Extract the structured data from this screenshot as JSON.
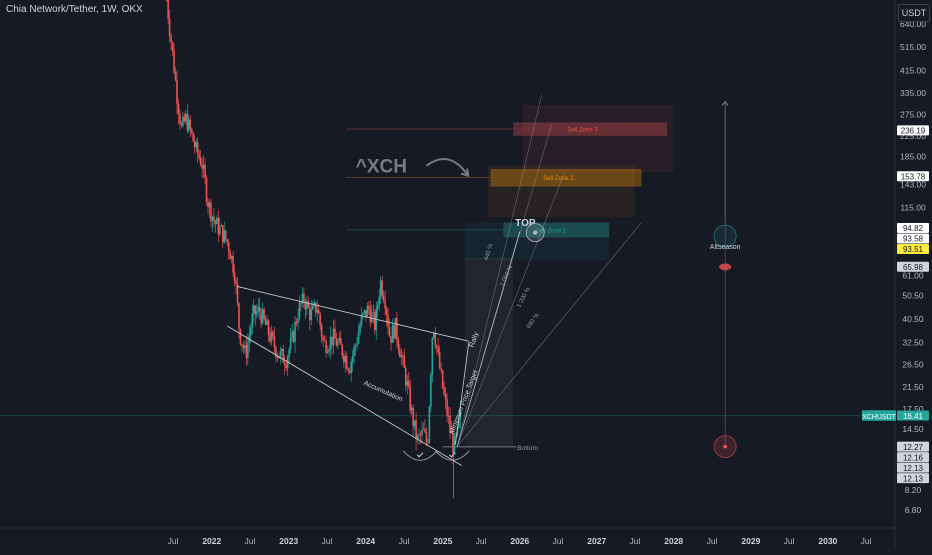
{
  "chart_data": {
    "type": "candlestick",
    "title": "Chia Network/Tether, 1W, OKX",
    "currency": "USDT",
    "y_scale": "log",
    "ylim": [
      5.5,
      800
    ],
    "y_ticks": [
      6.8,
      8.2,
      10.0,
      12.5,
      14.5,
      17.5,
      21.5,
      26.5,
      32.5,
      40.5,
      50.5,
      61.0,
      79.0,
      94.82,
      115.0,
      143.0,
      185.0,
      225.0,
      275.0,
      335.0,
      415.0,
      515.0,
      640.0
    ],
    "y_tick_labels": [
      "6.80",
      "8.20",
      "10.00",
      "12.50",
      "14.50",
      "17.50",
      "21.50",
      "26.50",
      "32.50",
      "40.50",
      "50.50",
      "61.00",
      "79.00",
      "94.82",
      "115.00",
      "143.00",
      "185.00",
      "225.00",
      "275.00",
      "335.00",
      "415.00",
      "515.00",
      "640.00"
    ],
    "x_ticks": [
      "2021-07",
      "2022-01",
      "2022-07",
      "2023-01",
      "2023-07",
      "2024-01",
      "2024-07",
      "2025-01",
      "2025-07",
      "2026-01",
      "2026-07",
      "2027-01",
      "2027-07",
      "2028-01",
      "2028-07",
      "2029-01",
      "2029-07",
      "2030-01",
      "2030-07"
    ],
    "x_tick_labels": [
      "Jul",
      "2022",
      "Jul",
      "2023",
      "Jul",
      "2024",
      "Jul",
      "2025",
      "Jul",
      "2026",
      "Jul",
      "2027",
      "Jul",
      "2028",
      "Jul",
      "2029",
      "Jul",
      "2030",
      "Jul"
    ],
    "price_path": [
      {
        "date": "2021-06-01",
        "price": 800
      },
      {
        "date": "2021-06-15",
        "price": 620
      },
      {
        "date": "2021-07-01",
        "price": 470
      },
      {
        "date": "2021-07-20",
        "price": 330
      },
      {
        "date": "2021-08-10",
        "price": 240
      },
      {
        "date": "2021-09-01",
        "price": 265
      },
      {
        "date": "2021-09-25",
        "price": 230
      },
      {
        "date": "2021-10-20",
        "price": 195
      },
      {
        "date": "2021-11-15",
        "price": 175
      },
      {
        "date": "2021-12-15",
        "price": 120
      },
      {
        "date": "2022-01-15",
        "price": 100
      },
      {
        "date": "2022-02-15",
        "price": 92
      },
      {
        "date": "2022-03-20",
        "price": 82
      },
      {
        "date": "2022-04-20",
        "price": 63
      },
      {
        "date": "2022-05-12",
        "price": 36
      },
      {
        "date": "2022-06-10",
        "price": 29
      },
      {
        "date": "2022-07-15",
        "price": 42
      },
      {
        "date": "2022-08-15",
        "price": 44
      },
      {
        "date": "2022-10-01",
        "price": 35
      },
      {
        "date": "2022-11-15",
        "price": 29
      },
      {
        "date": "2022-12-20",
        "price": 28
      },
      {
        "date": "2023-01-20",
        "price": 34
      },
      {
        "date": "2023-02-15",
        "price": 44
      },
      {
        "date": "2023-03-15",
        "price": 49
      },
      {
        "date": "2023-04-15",
        "price": 42
      },
      {
        "date": "2023-05-15",
        "price": 46
      },
      {
        "date": "2023-06-15",
        "price": 32
      },
      {
        "date": "2023-08-01",
        "price": 34
      },
      {
        "date": "2023-09-15",
        "price": 30
      },
      {
        "date": "2023-10-15",
        "price": 26
      },
      {
        "date": "2023-11-15",
        "price": 32
      },
      {
        "date": "2023-12-10",
        "price": 40
      },
      {
        "date": "2024-01-15",
        "price": 45
      },
      {
        "date": "2024-02-15",
        "price": 38
      },
      {
        "date": "2024-03-10",
        "price": 58
      },
      {
        "date": "2024-04-01",
        "price": 50
      },
      {
        "date": "2024-04-25",
        "price": 34
      },
      {
        "date": "2024-05-20",
        "price": 38
      },
      {
        "date": "2024-06-20",
        "price": 28
      },
      {
        "date": "2024-07-15",
        "price": 22
      },
      {
        "date": "2024-08-10",
        "price": 16
      },
      {
        "date": "2024-09-01",
        "price": 13
      },
      {
        "date": "2024-10-01",
        "price": 14
      },
      {
        "date": "2024-10-20",
        "price": 12.5
      },
      {
        "date": "2024-11-15",
        "price": 40
      },
      {
        "date": "2024-12-10",
        "price": 28
      },
      {
        "date": "2025-01-05",
        "price": 20
      },
      {
        "date": "2025-02-01",
        "price": 15
      },
      {
        "date": "2025-02-20",
        "price": 12.2
      },
      {
        "date": "2025-03-10",
        "price": 13.5
      },
      {
        "date": "2025-03-25",
        "price": 16.41
      }
    ],
    "price_labels": [
      {
        "value": 236.19,
        "text": "236.19",
        "bg": "#ffffff",
        "fg": "#131722"
      },
      {
        "value": 153.78,
        "text": "153.78",
        "bg": "#ffffff",
        "fg": "#131722"
      },
      {
        "value": 94.82,
        "text": "94.82",
        "bg": "#ffffff",
        "fg": "#131722"
      },
      {
        "value": 93.58,
        "text": "93.58",
        "bg": "#ffffff",
        "fg": "#131722"
      },
      {
        "value": 93.51,
        "text": "93.51",
        "bg": "#ffeb3b",
        "fg": "#131722"
      },
      {
        "value": 65.98,
        "text": "65.98",
        "bg": "#d1d4dc",
        "fg": "#131722"
      },
      {
        "value": 16.41,
        "text": "16.41",
        "bg": "#26a69a",
        "fg": "#ffffff"
      },
      {
        "value": 12.27,
        "text": "12.27",
        "bg": "#d1d4dc",
        "fg": "#131722"
      },
      {
        "value": 12.16,
        "text": "12.16",
        "bg": "#d1d4dc",
        "fg": "#131722"
      },
      {
        "value": 12.13,
        "text": "12.13",
        "bg": "#d1d4dc",
        "fg": "#131722"
      },
      {
        "value": 12.13,
        "text": "12.13",
        "bg": "#d1d4dc",
        "fg": "#131722"
      }
    ],
    "symbol_label": "XCHUSDT",
    "last_price": 16.41,
    "zones": [
      {
        "name": "Sell Zone 3",
        "from_date": "2025-12-01",
        "to_date": "2027-12-01",
        "low": 225,
        "high": 255,
        "color": "#ef5350"
      },
      {
        "name": "Sell Zone 2",
        "from_date": "2025-08-15",
        "to_date": "2027-08-01",
        "low": 140,
        "high": 165,
        "color": "#ff9800"
      },
      {
        "name": "Sell Zone 1",
        "from_date": "2025-10-15",
        "to_date": "2027-03-01",
        "low": 87,
        "high": 100,
        "color": "#26a69a"
      }
    ],
    "annotations": {
      "ticker_text": "^XCH",
      "top_text": "TOP",
      "accumulation_text": "Accumulation",
      "minimum_target_text": "Minimum Price Target",
      "rally_text": "Rally",
      "bottom_text": "Bottom",
      "altseason_text": "Altseason",
      "fan_labels": [
        "440 %",
        "1 060 %",
        "1 200 %",
        "680 %"
      ]
    },
    "colors": {
      "up": "#26a69a",
      "down": "#ef5350",
      "background": "#161a25",
      "text": "#b2b5be"
    }
  }
}
